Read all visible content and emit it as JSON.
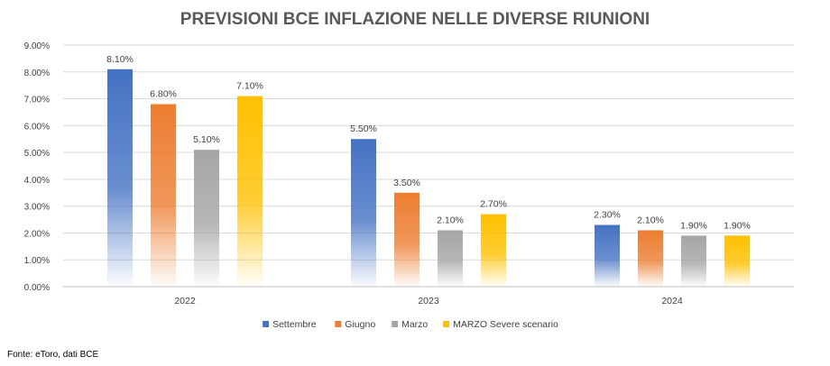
{
  "chart_data": {
    "type": "bar",
    "title": "PREVISIONI BCE INFLAZIONE NELLE DIVERSE RIUNIONI",
    "xlabel": "",
    "ylabel": "",
    "categories": [
      "2022",
      "2023",
      "2024"
    ],
    "ylim": [
      0,
      9
    ],
    "ytick_values": [
      0,
      1,
      2,
      3,
      4,
      5,
      6,
      7,
      8,
      9
    ],
    "ytick_labels": [
      "0.00%",
      "1.00%",
      "2.00%",
      "3.00%",
      "4.00%",
      "5.00%",
      "6.00%",
      "7.00%",
      "8.00%",
      "9.00%"
    ],
    "grid": true,
    "legend_position": "bottom",
    "series": [
      {
        "name": "Settembre",
        "color": "#4472C4",
        "values": [
          8.1,
          5.5,
          2.3
        ],
        "labels": [
          "8.10%",
          "5.50%",
          "2.30%"
        ]
      },
      {
        "name": "Giugno",
        "color": "#ED7D31",
        "values": [
          6.8,
          3.5,
          2.1
        ],
        "labels": [
          "6.80%",
          "3.50%",
          "2.10%"
        ]
      },
      {
        "name": "Marzo",
        "color": "#A5A5A5",
        "values": [
          5.1,
          2.1,
          1.9
        ],
        "labels": [
          "5.10%",
          "2.10%",
          "1.90%"
        ]
      },
      {
        "name": "MARZO Severe scenario",
        "color": "#FFC000",
        "values": [
          7.1,
          2.7,
          1.9
        ],
        "labels": [
          "7.10%",
          "2.70%",
          "1.90%"
        ]
      }
    ]
  },
  "source_note": "Fonte: eToro, dati BCE"
}
